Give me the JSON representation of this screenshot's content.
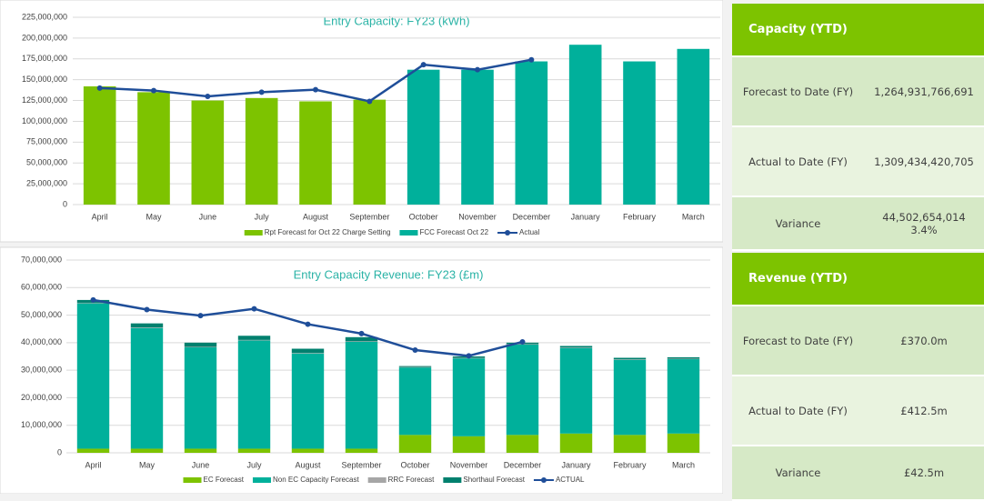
{
  "chart_data": [
    {
      "type": "bar",
      "stacked": true,
      "title": "Entry Capacity: FY23 (kWh)",
      "categories": [
        "April",
        "May",
        "June",
        "July",
        "August",
        "September",
        "October",
        "November",
        "December",
        "January",
        "February",
        "March"
      ],
      "series": [
        {
          "name": "Rpt Forecast for Oct 22 Charge Setting",
          "kind": "bar",
          "color": "#7dc300",
          "values": [
            142000000,
            135000000,
            125000000,
            128000000,
            124000000,
            126000000,
            null,
            null,
            null,
            null,
            null,
            null
          ]
        },
        {
          "name": "FCC Forecast Oct 22",
          "kind": "bar",
          "color": "#00b09b",
          "values": [
            null,
            null,
            null,
            null,
            null,
            null,
            162000000,
            162000000,
            172000000,
            192000000,
            172000000,
            187000000
          ]
        },
        {
          "name": "Actual",
          "kind": "line",
          "color": "#1f4e99",
          "values": [
            140000000,
            137000000,
            130000000,
            135000000,
            138000000,
            124000000,
            168000000,
            162000000,
            174000000,
            null,
            null,
            null
          ]
        }
      ],
      "ylim": [
        0,
        225000000
      ],
      "yticks": [
        {
          "value": 0,
          "label": "0"
        },
        {
          "value": 25000000,
          "label": "25,000,000"
        },
        {
          "value": 50000000,
          "label": "50,000,000"
        },
        {
          "value": 75000000,
          "label": "75,000,000"
        },
        {
          "value": 100000000,
          "label": "100,000,000"
        },
        {
          "value": 125000000,
          "label": "125,000,000"
        },
        {
          "value": 150000000,
          "label": "150,000,000"
        },
        {
          "value": 175000000,
          "label": "175,000,000"
        },
        {
          "value": 200000000,
          "label": "200,000,000"
        },
        {
          "value": 225000000,
          "label": "225,000,000"
        }
      ],
      "grid": true,
      "legend": "bottom"
    },
    {
      "type": "bar",
      "stacked": true,
      "title": "Entry Capacity Revenue: FY23 (£m)",
      "categories": [
        "April",
        "May",
        "June",
        "July",
        "August",
        "September",
        "October",
        "November",
        "December",
        "January",
        "February",
        "March"
      ],
      "series": [
        {
          "name": "EC Forecast",
          "kind": "bar",
          "color": "#7dc300",
          "values": [
            1500000,
            1500000,
            1500000,
            1500000,
            1500000,
            1500000,
            6500000,
            6000000,
            6500000,
            7000000,
            6500000,
            7000000
          ]
        },
        {
          "name": "Non EC Capacity Forecast",
          "kind": "bar",
          "color": "#00b09b",
          "values": [
            52800000,
            43800000,
            36800000,
            39300000,
            34600000,
            38800000,
            24500000,
            28300000,
            32800000,
            31100000,
            27300000,
            27000000
          ]
        },
        {
          "name": "RRC Forecast",
          "kind": "bar",
          "color": "#a6a6a6",
          "values": [
            200000,
            200000,
            200000,
            200000,
            200000,
            200000,
            200000,
            200000,
            200000,
            200000,
            200000,
            200000
          ]
        },
        {
          "name": "Shorthaul Forecast",
          "kind": "bar",
          "color": "#00806e",
          "values": [
            1000000,
            1500000,
            1500000,
            1500000,
            1500000,
            1500000,
            300000,
            500000,
            500000,
            500000,
            500000,
            500000
          ]
        },
        {
          "name": "ACTUAL",
          "kind": "line",
          "color": "#1f4e99",
          "values": [
            55500000,
            52000000,
            49800000,
            52300000,
            46700000,
            43300000,
            37300000,
            35200000,
            40300000,
            null,
            null,
            null
          ]
        }
      ],
      "ylim": [
        0,
        70000000
      ],
      "yticks": [
        {
          "value": 0,
          "label": "0"
        },
        {
          "value": 10000000,
          "label": "10,000,000"
        },
        {
          "value": 20000000,
          "label": "20,000,000"
        },
        {
          "value": 30000000,
          "label": "30,000,000"
        },
        {
          "value": 40000000,
          "label": "40,000,000"
        },
        {
          "value": 50000000,
          "label": "50,000,000"
        },
        {
          "value": 60000000,
          "label": "60,000,000"
        },
        {
          "value": 70000000,
          "label": "70,000,000"
        }
      ],
      "grid": true,
      "legend": "bottom"
    }
  ],
  "tables": [
    {
      "header": "Capacity (YTD)",
      "rows": [
        [
          "Forecast to Date (FY)",
          [
            "1,264,931,766,691"
          ]
        ],
        [
          "Actual to Date (FY)",
          [
            "1,309,434,420,705"
          ]
        ],
        [
          "Variance",
          [
            "44,502,654,014",
            "3.4%"
          ]
        ]
      ]
    },
    {
      "header": "Revenue (YTD)",
      "rows": [
        [
          "Forecast to Date (FY)",
          [
            "£370.0m"
          ]
        ],
        [
          "Actual to Date (FY)",
          [
            "£412.5m"
          ]
        ],
        [
          "Variance",
          [
            "£42.5m"
          ]
        ]
      ]
    }
  ]
}
